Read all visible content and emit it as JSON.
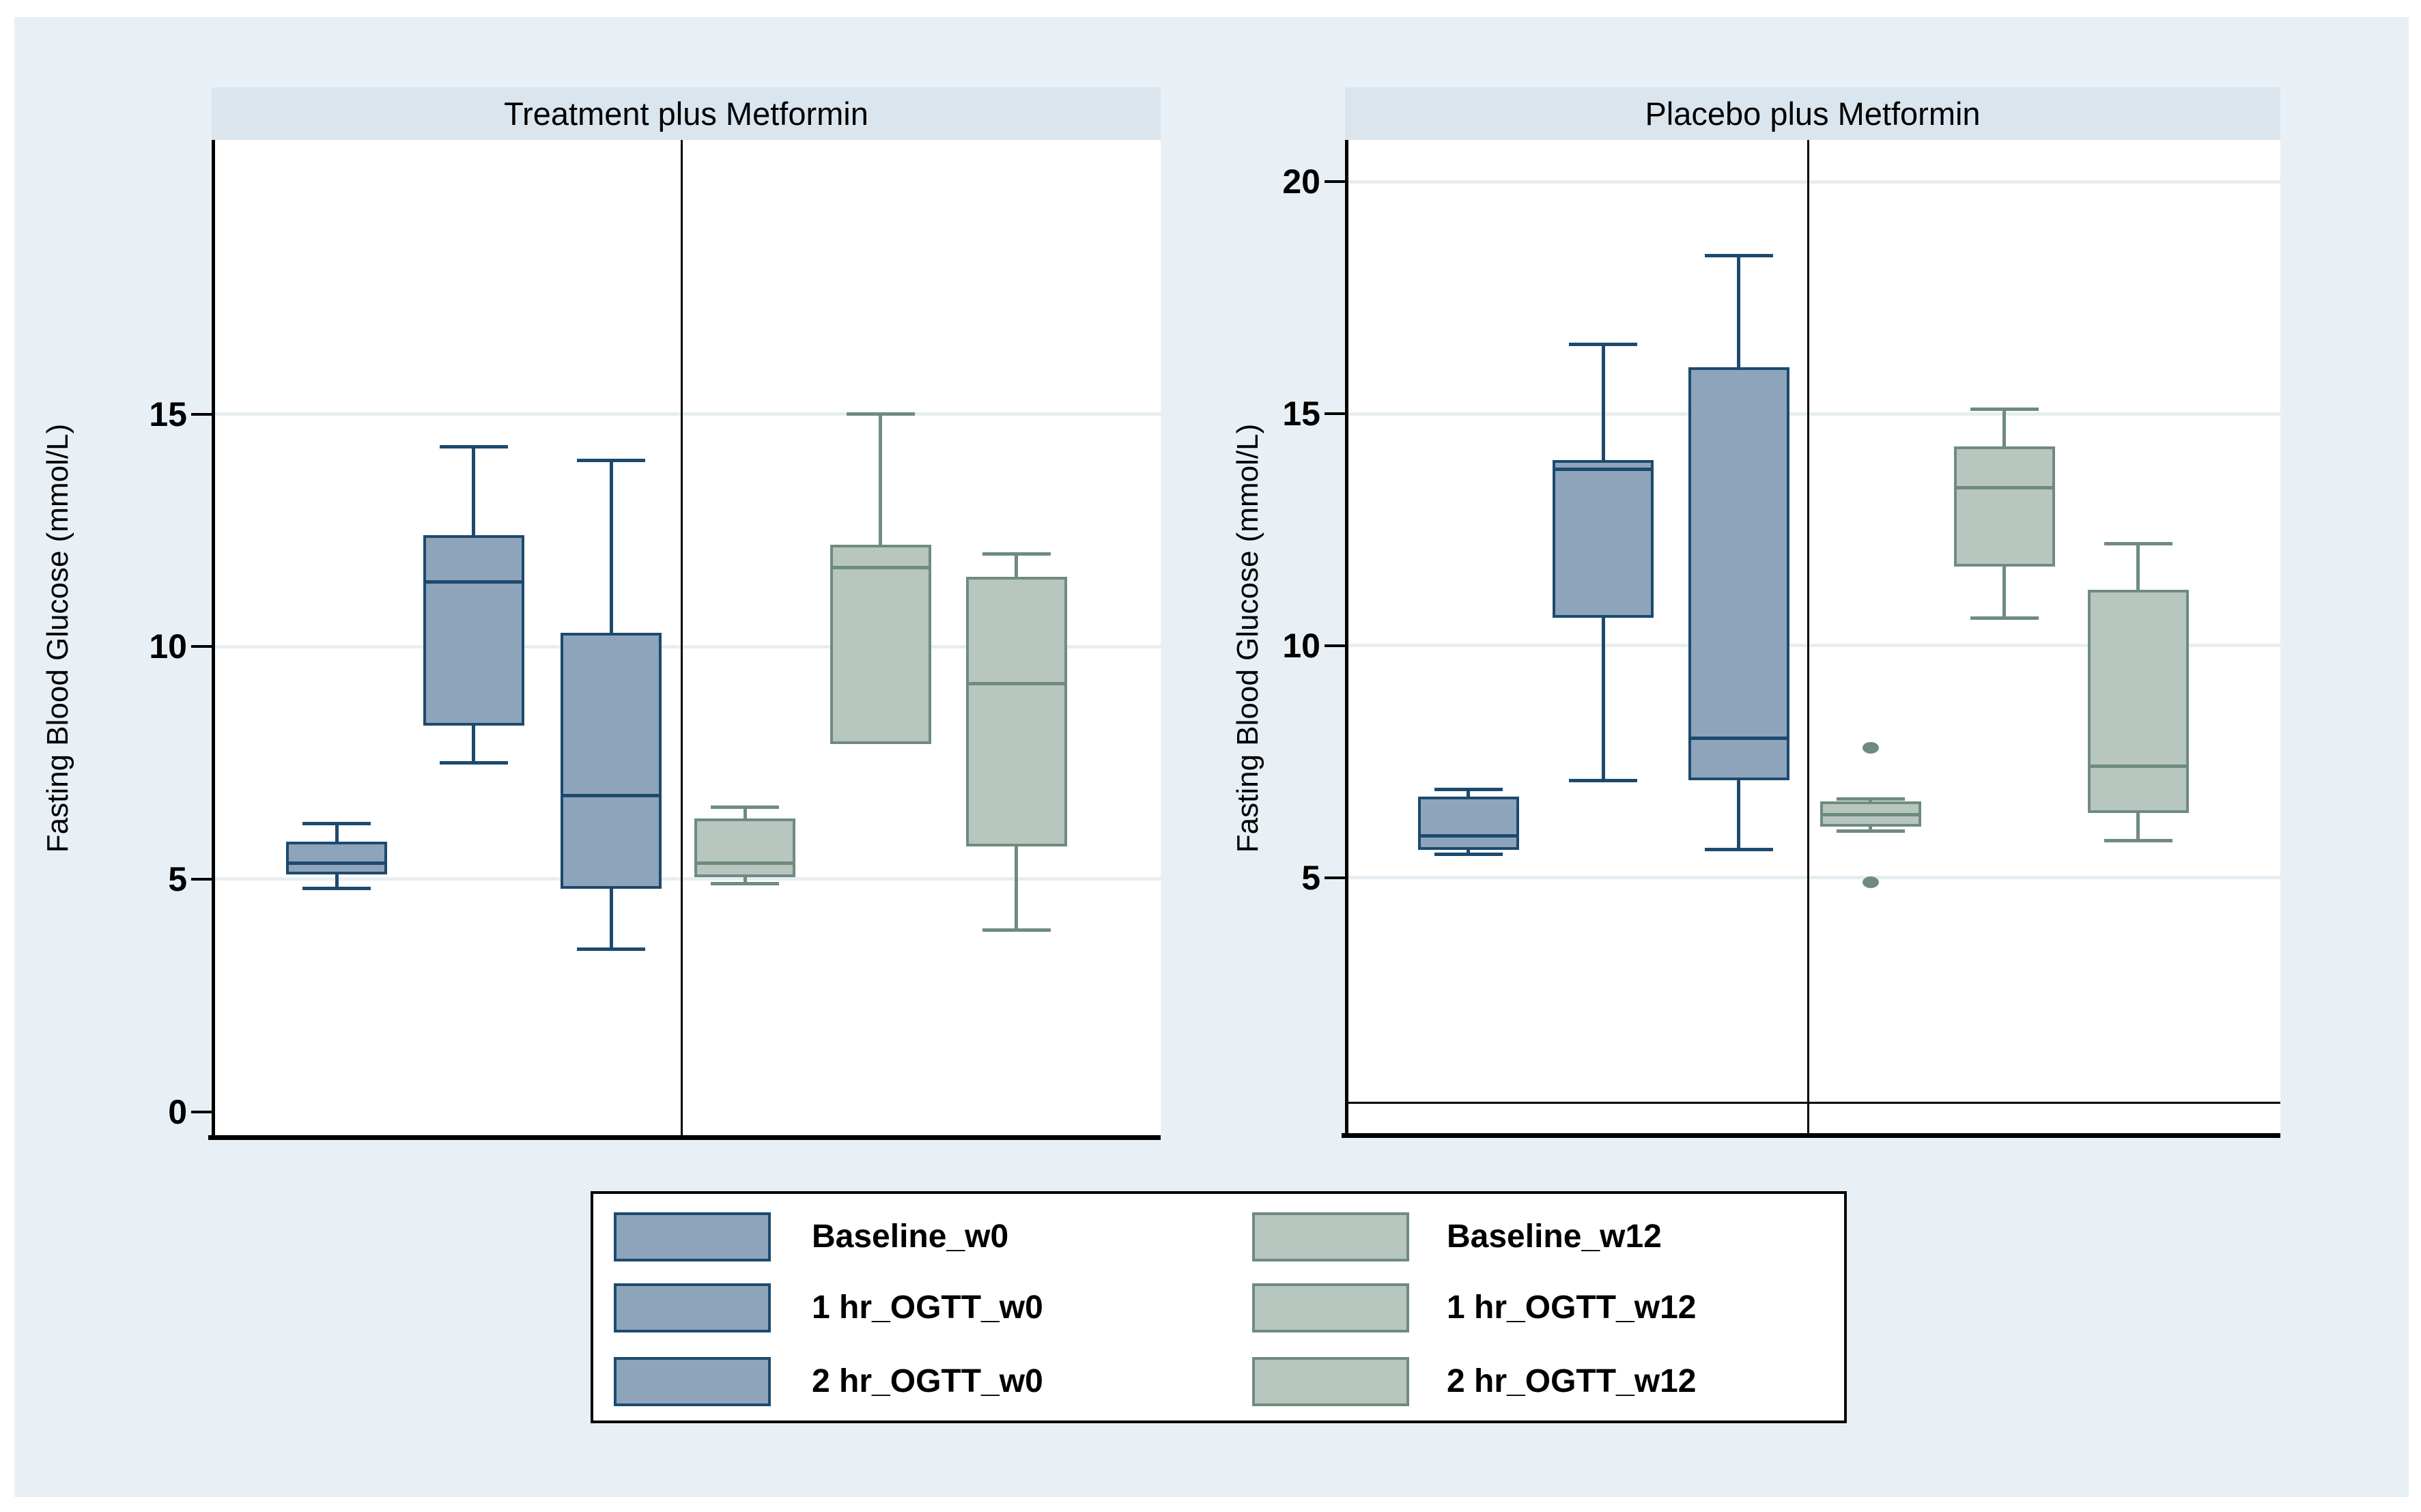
{
  "figure": {
    "background_color": "#e9f0f5",
    "panel_title_bg": "#dbe5ed",
    "grid_color": "#e7eef2",
    "axis_color": "#000000",
    "ylabel": "Fasting Blood Glucose (mmol/L)"
  },
  "series_colors": {
    "w0": {
      "fill": "#8ea4ba",
      "border": "#1c4a6e"
    },
    "w12": {
      "fill": "#b7c6be",
      "border": "#6f8b80"
    }
  },
  "legend": {
    "columns": [
      {
        "series": "w0",
        "items": [
          "Baseline_w0",
          "1 hr_OGTT_w0",
          "2 hr_OGTT_w0"
        ]
      },
      {
        "series": "w12",
        "items": [
          "Baseline_w12",
          "1 hr_OGTT_w12",
          "2 hr_OGTT_w12"
        ]
      }
    ]
  },
  "chart_data": {
    "type": "boxplot",
    "ylabel": "Fasting Blood Glucose (mmol/L)",
    "value_axis_range": [
      -0.55,
      20.9
    ],
    "grid": true,
    "legend_position": "bottom",
    "panels": [
      {
        "title": "Treatment plus Metformin",
        "yticks": [
          0,
          5,
          10,
          15
        ],
        "gridlines": [
          5,
          10,
          15
        ],
        "zero_line": null,
        "boxes": [
          {
            "label": "Baseline_w0",
            "series": "w0",
            "whisker_low": 4.8,
            "q1": 5.1,
            "median": 5.35,
            "q3": 5.8,
            "whisker_high": 6.2,
            "outliers": []
          },
          {
            "label": "1 hr_OGTT_w0",
            "series": "w0",
            "whisker_low": 7.5,
            "q1": 8.3,
            "median": 11.4,
            "q3": 12.4,
            "whisker_high": 14.3,
            "outliers": []
          },
          {
            "label": "2 hr_OGTT_w0",
            "series": "w0",
            "whisker_low": 3.5,
            "q1": 4.8,
            "median": 6.8,
            "q3": 10.3,
            "whisker_high": 14.0,
            "outliers": []
          },
          {
            "label": "Baseline_w12",
            "series": "w12",
            "whisker_low": 4.9,
            "q1": 5.05,
            "median": 5.35,
            "q3": 6.3,
            "whisker_high": 6.55,
            "outliers": []
          },
          {
            "label": "1 hr_OGTT_w12",
            "series": "w12",
            "whisker_low": 7.9,
            "q1": 7.9,
            "median": 11.7,
            "q3": 12.2,
            "whisker_high": 15.0,
            "outliers": []
          },
          {
            "label": "2 hr_OGTT_w12",
            "series": "w12",
            "whisker_low": 3.9,
            "q1": 5.7,
            "median": 9.2,
            "q3": 11.5,
            "whisker_high": 12.0,
            "outliers": []
          }
        ]
      },
      {
        "title": "Placebo plus Metformin",
        "yticks": [
          5,
          10,
          15,
          20
        ],
        "gridlines": [
          5,
          10,
          15,
          20
        ],
        "zero_line": 0.15,
        "boxes": [
          {
            "label": "Baseline_w0",
            "series": "w0",
            "whisker_low": 5.5,
            "q1": 5.6,
            "median": 5.9,
            "q3": 6.75,
            "whisker_high": 6.9,
            "outliers": []
          },
          {
            "label": "1 hr_OGTT_w0",
            "series": "w0",
            "whisker_low": 7.1,
            "q1": 10.6,
            "median": 13.8,
            "q3": 14.0,
            "whisker_high": 16.5,
            "outliers": []
          },
          {
            "label": "2 hr_OGTT_w0",
            "series": "w0",
            "whisker_low": 5.6,
            "q1": 7.1,
            "median": 8.0,
            "q3": 16.0,
            "whisker_high": 18.4,
            "outliers": []
          },
          {
            "label": "Baseline_w12",
            "series": "w12",
            "whisker_low": 6.0,
            "q1": 6.1,
            "median": 6.35,
            "q3": 6.65,
            "whisker_high": 6.7,
            "outliers": [
              7.8,
              4.9
            ]
          },
          {
            "label": "1 hr_OGTT_w12",
            "series": "w12",
            "whisker_low": 10.6,
            "q1": 11.7,
            "median": 13.4,
            "q3": 14.3,
            "whisker_high": 15.1,
            "outliers": []
          },
          {
            "label": "2 hr_OGTT_w12",
            "series": "w12",
            "whisker_low": 5.8,
            "q1": 6.4,
            "median": 7.4,
            "q3": 11.2,
            "whisker_high": 12.2,
            "outliers": []
          }
        ]
      }
    ]
  }
}
